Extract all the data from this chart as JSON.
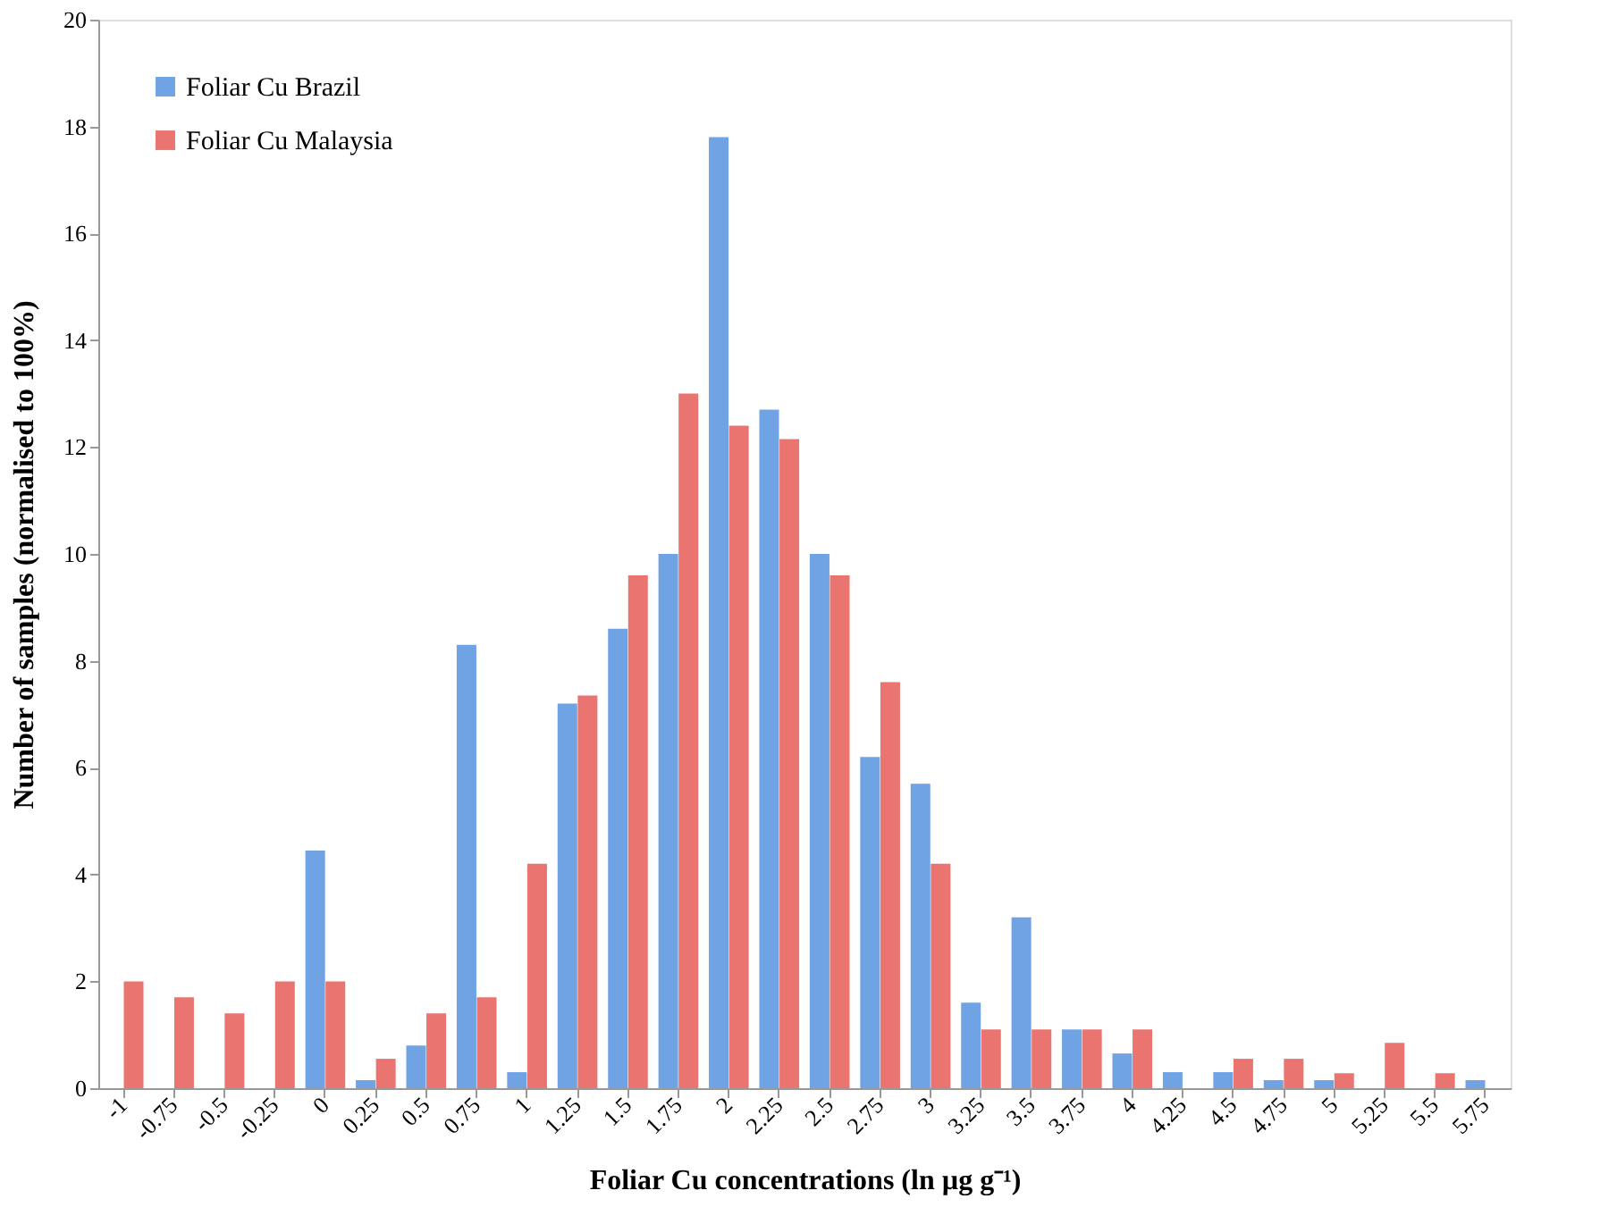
{
  "chart_data": {
    "type": "bar",
    "xlabel": "Foliar Cu concentrations (ln µg g⁻¹)",
    "ylabel": "Number of samples (normalised to 100%)",
    "categories": [
      "-1",
      "-0.75",
      "-0.5",
      "-0.25",
      "0",
      "0.25",
      "0.5",
      "0.75",
      "1",
      "1.25",
      "1.5",
      "1.75",
      "2",
      "2.25",
      "2.5",
      "2.75",
      "3",
      "3.25",
      "3.5",
      "3.75",
      "4",
      "4.25",
      "4.5",
      "4.75",
      "5",
      "5.25",
      "5.5",
      "5.75"
    ],
    "series": [
      {
        "name": "Foliar Cu Brazil",
        "color": "#6fa3e3",
        "values": [
          0,
          0,
          0,
          0,
          4.45,
          0.15,
          0.8,
          8.3,
          0.3,
          7.2,
          8.6,
          10.0,
          17.8,
          12.7,
          10.0,
          6.2,
          5.7,
          1.6,
          3.2,
          1.1,
          0.65,
          0.3,
          0.3,
          0.15,
          0.15,
          0,
          0,
          0.15
        ]
      },
      {
        "name": "Foliar Cu Malaysia",
        "color": "#e97470",
        "values": [
          2,
          1.7,
          1.4,
          2,
          2,
          0.55,
          1.4,
          1.7,
          4.2,
          7.35,
          9.6,
          13,
          12.4,
          12.15,
          9.6,
          7.6,
          4.2,
          1.1,
          1.1,
          1.1,
          1.1,
          0,
          0.55,
          0.55,
          0.28,
          0.85,
          0.28,
          0
        ]
      }
    ],
    "ylim": [
      0,
      20
    ],
    "yticks": [
      0,
      2,
      4,
      6,
      8,
      10,
      12,
      14,
      16,
      18,
      20
    ],
    "grid": false,
    "legend": "top left"
  }
}
